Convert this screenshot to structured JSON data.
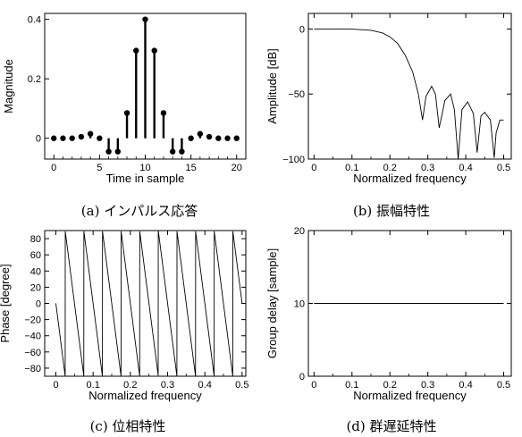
{
  "chart_data": [
    {
      "id": "impulse",
      "type": "stem",
      "caption": "(a) インパルス応答",
      "xlabel": "Time in sample",
      "ylabel": "Magnitude",
      "xlim": [
        -1,
        21
      ],
      "ylim": [
        -0.07,
        0.42
      ],
      "xticks": [
        0,
        5,
        10,
        15,
        20
      ],
      "xtick_labels": [
        "0",
        "5",
        "10",
        "15",
        "20"
      ],
      "yticks": [
        0,
        0.2,
        0.4
      ],
      "ytick_labels": [
        "0",
        "0.2",
        "0.4"
      ],
      "x": [
        0,
        1,
        2,
        3,
        4,
        5,
        6,
        7,
        8,
        9,
        10,
        11,
        12,
        13,
        14,
        15,
        16,
        17,
        18,
        19,
        20
      ],
      "values": [
        0.0,
        0.0,
        0.0,
        0.005,
        0.015,
        0.0,
        -0.045,
        -0.045,
        0.085,
        0.295,
        0.4,
        0.295,
        0.085,
        -0.045,
        -0.045,
        0.0,
        0.015,
        0.005,
        0.0,
        0.0,
        0.0
      ]
    },
    {
      "id": "amplitude",
      "type": "line",
      "caption": "(b) 振幅特性",
      "xlabel": "Normalized frequency",
      "ylabel": "Amplitude [dB]",
      "xlim": [
        -0.015,
        0.52
      ],
      "ylim": [
        -100,
        12
      ],
      "xticks": [
        0,
        0.1,
        0.2,
        0.3,
        0.4,
        0.5
      ],
      "xtick_labels": [
        "0",
        "0.1",
        "0.2",
        "0.3",
        "0.4",
        "0.5"
      ],
      "yticks": [
        -100,
        -50,
        0
      ],
      "ytick_labels": [
        "−100",
        "−50",
        "0"
      ],
      "x": [
        0,
        0.05,
        0.1,
        0.15,
        0.18,
        0.2,
        0.22,
        0.24,
        0.26,
        0.275,
        0.286,
        0.295,
        0.31,
        0.32,
        0.33,
        0.345,
        0.36,
        0.37,
        0.38,
        0.39,
        0.405,
        0.42,
        0.43,
        0.44,
        0.45,
        0.465,
        0.475,
        0.48,
        0.49,
        0.5
      ],
      "values": [
        0,
        0,
        -0.1,
        -1,
        -3,
        -6,
        -11,
        -20,
        -33,
        -50,
        -70,
        -52,
        -44,
        -50,
        -76,
        -55,
        -50,
        -62,
        -100,
        -62,
        -56,
        -65,
        -95,
        -67,
        -64,
        -70,
        -99,
        -80,
        -70,
        -70
      ]
    },
    {
      "id": "phase",
      "type": "line",
      "caption": "(c) 位相特性",
      "xlabel": "Normalized frequency",
      "ylabel": "Phase [degree]",
      "xlim": [
        -0.03,
        0.51
      ],
      "ylim": [
        -90,
        90
      ],
      "xticks": [
        0,
        0.1,
        0.2,
        0.3,
        0.4,
        0.5
      ],
      "xtick_labels": [
        "0",
        "0.1",
        "0.2",
        "0.3",
        "0.4",
        "0.5"
      ],
      "yticks": [
        -80,
        -60,
        -40,
        -20,
        0,
        20,
        40,
        60,
        80
      ],
      "ytick_labels": [
        "−80",
        "−60",
        "−40",
        "−20",
        "0",
        "20",
        "40",
        "60",
        "80"
      ],
      "slope_deg_per_unit": -3600,
      "wrap_at_deg": 90
    },
    {
      "id": "group_delay",
      "type": "line",
      "caption": "(d) 群遅延特性",
      "xlabel": "Normalized frequency",
      "ylabel": "Group delay [sample]",
      "xlim": [
        -0.015,
        0.52
      ],
      "ylim": [
        0,
        20
      ],
      "xticks": [
        0,
        0.1,
        0.2,
        0.3,
        0.4,
        0.5
      ],
      "xtick_labels": [
        "0",
        "0.1",
        "0.2",
        "0.3",
        "0.4",
        "0.5"
      ],
      "yticks": [
        0,
        10,
        20
      ],
      "ytick_labels": [
        "0",
        "10",
        "20"
      ],
      "x": [
        0,
        0.5
      ],
      "values": [
        10,
        10
      ]
    }
  ]
}
